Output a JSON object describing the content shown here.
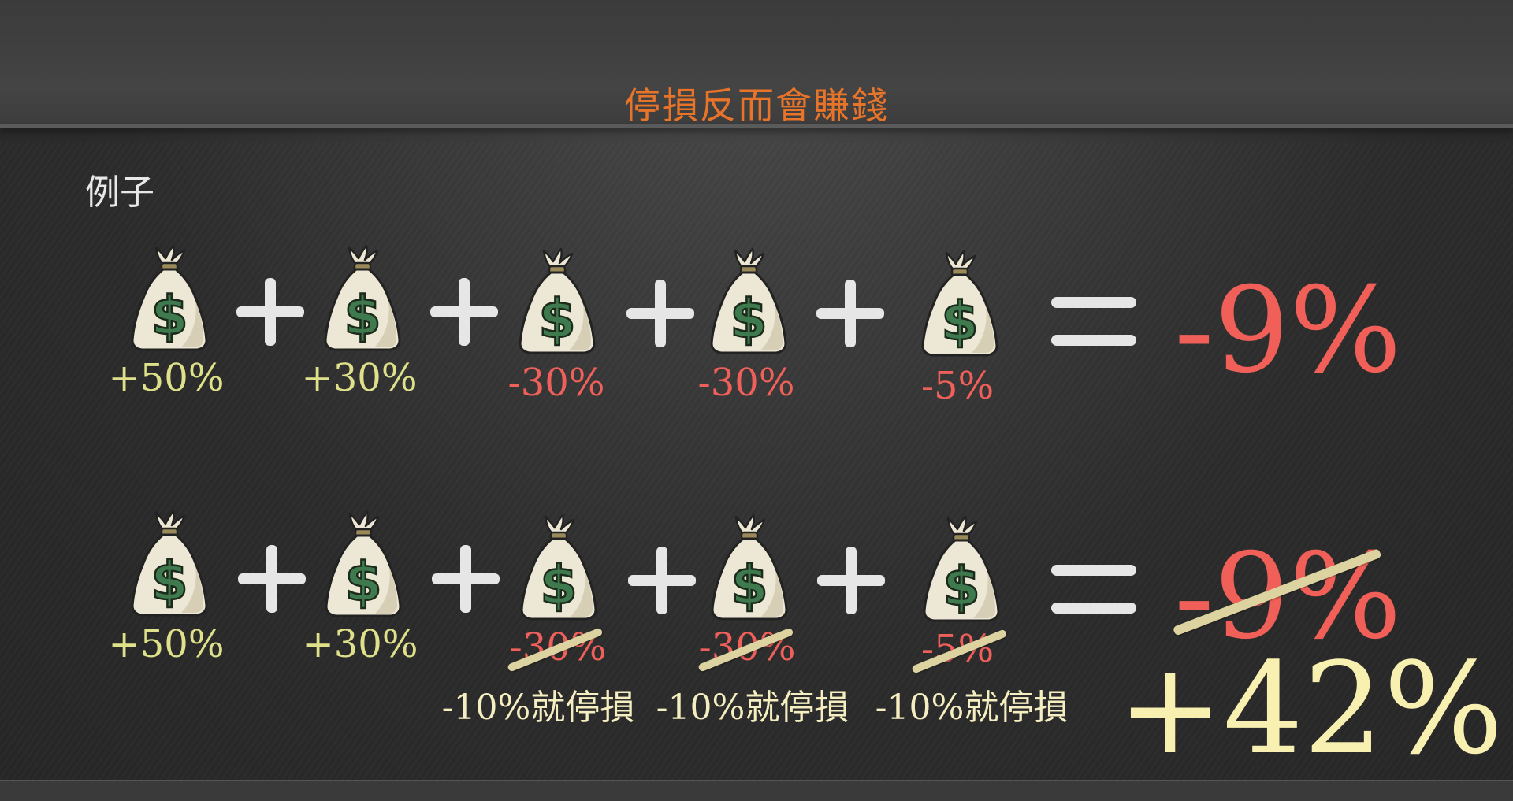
{
  "slide": {
    "title": "停損反而會賺錢",
    "subtitle": "例子"
  },
  "colors": {
    "title": "#e8742a",
    "gain": "#dfe08a",
    "loss": "#f0605a",
    "result_loss": "#f06058",
    "result_gain": "#f8f0b0",
    "stop_label": "#f5eec0",
    "strike": "#ddd3a0"
  },
  "icons": {
    "bag": "money-bag-icon",
    "plus": "plus-icon",
    "equals": "equals-icon"
  },
  "row1": {
    "percents": [
      "+50%",
      "+30%",
      "-30%",
      "-30%",
      "-5%"
    ],
    "result": "-9%"
  },
  "row2": {
    "percents": [
      "+50%",
      "+30%",
      "-30%",
      "-30%",
      "-5%"
    ],
    "stop_labels": [
      "-10%就停損",
      "-10%就停損",
      "-10%就停損"
    ],
    "old_result": "-9%",
    "new_result": "+42%"
  }
}
